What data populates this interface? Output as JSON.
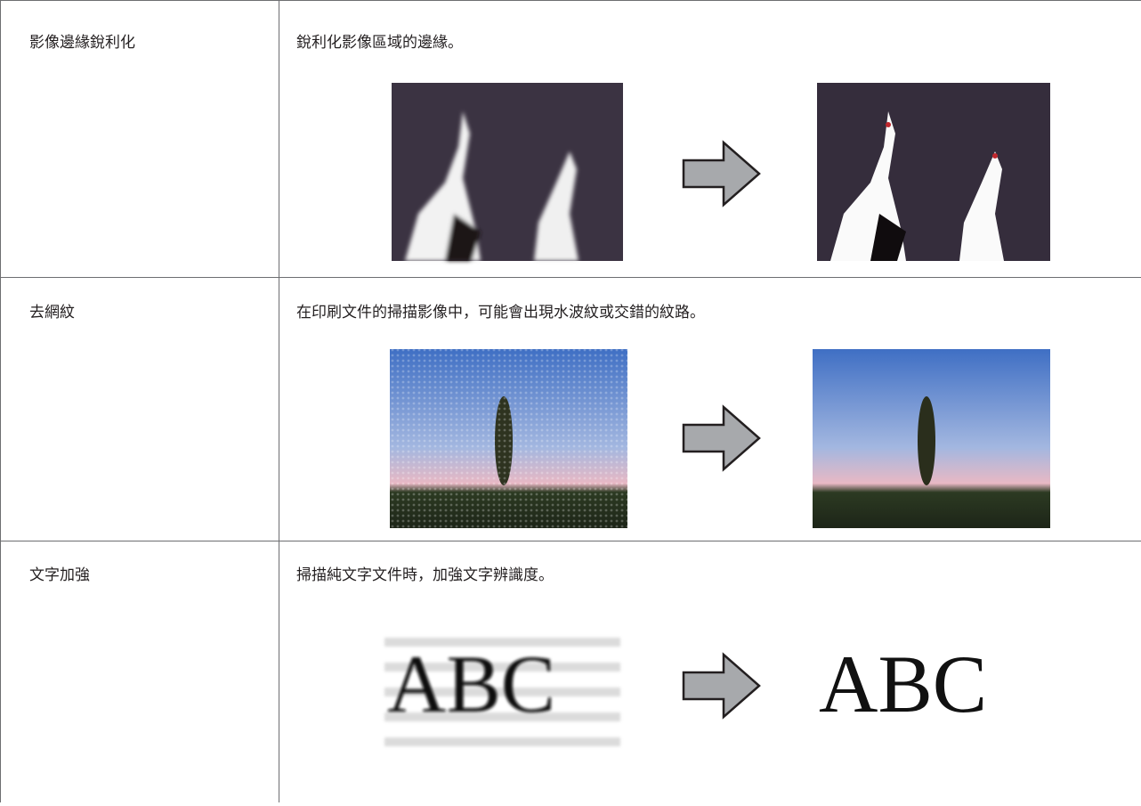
{
  "table": {
    "rows": [
      {
        "label": "影像邊緣銳利化",
        "description": "銳利化影像區域的邊緣。"
      },
      {
        "label": "去網紋",
        "description": "在印刷文件的掃描影像中，可能會出現水波紋或交錯的紋路。"
      },
      {
        "label": "文字加強",
        "description": "掃描純文字文件時，加強文字辨識度。",
        "image_text": [
          "ABC",
          "ABC"
        ]
      }
    ]
  }
}
